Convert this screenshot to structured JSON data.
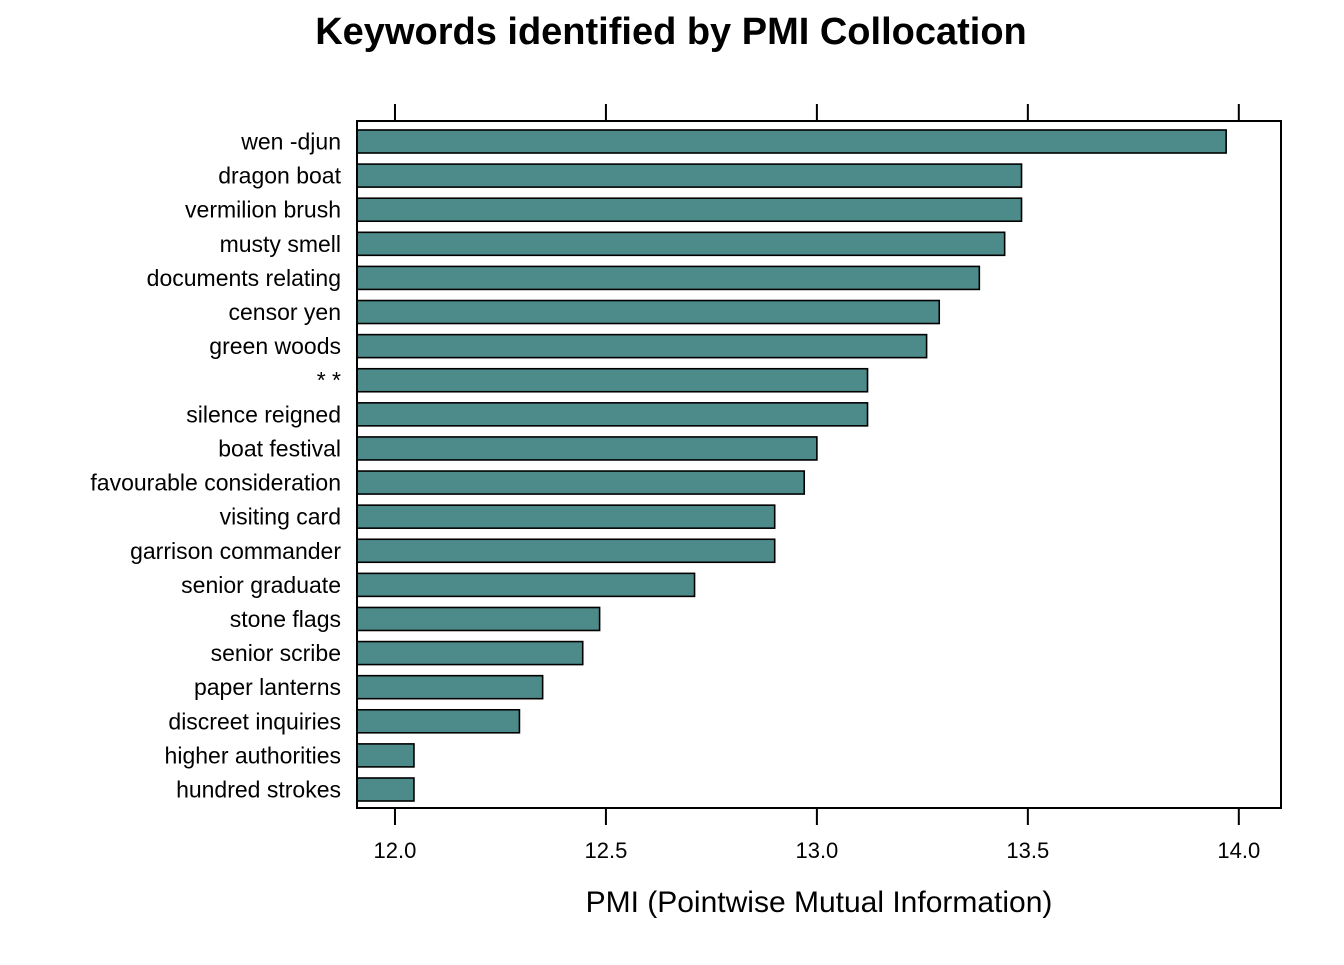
{
  "chart_data": {
    "type": "bar",
    "orientation": "horizontal",
    "title": "Keywords identified by PMI Collocation",
    "xlabel": "PMI (Pointwise Mutual Information)",
    "ylabel": "",
    "xlim": [
      11.91,
      14.1
    ],
    "xticks": [
      "12.0",
      "12.5",
      "13.0",
      "13.5",
      "14.0"
    ],
    "grid": false,
    "legend": "none",
    "bar_color": "#4d8b8b",
    "categories": [
      "wen -djun",
      "dragon boat",
      "vermilion brush",
      "musty smell",
      "documents relating",
      "censor yen",
      "green woods",
      "* *",
      "silence reigned",
      "boat festival",
      "favourable consideration",
      "visiting card",
      "garrison commander",
      "senior graduate",
      "stone flags",
      "senior scribe",
      "paper lanterns",
      "discreet inquiries",
      "higher authorities",
      "hundred strokes"
    ],
    "values": [
      13.97,
      13.485,
      13.485,
      13.445,
      13.385,
      13.29,
      13.26,
      13.12,
      13.12,
      13.0,
      12.97,
      12.9,
      12.9,
      12.71,
      12.485,
      12.445,
      12.35,
      12.295,
      12.045,
      12.045
    ]
  }
}
